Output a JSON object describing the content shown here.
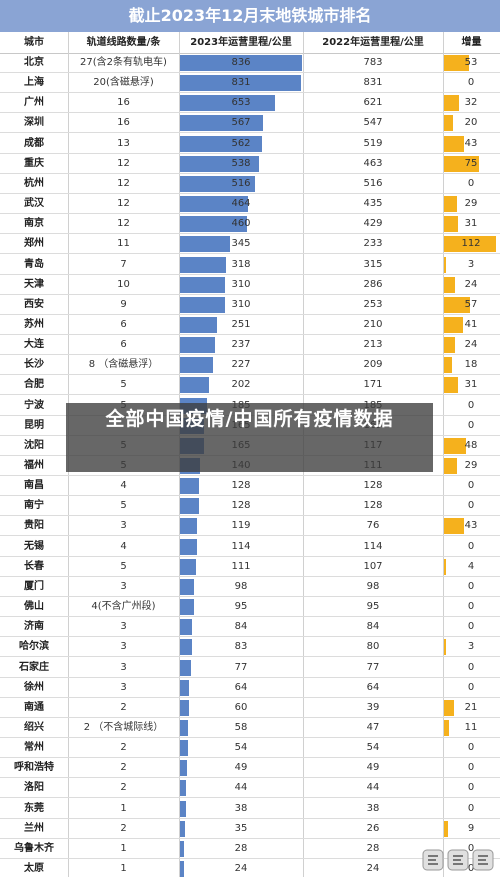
{
  "chart_data": {
    "type": "table",
    "title": "截止2023年12月末地铁城市排名",
    "columns": [
      "城市",
      "轨道线路数量/条",
      "2023年运营里程/公里",
      "2022年运营里程/公里",
      "增量"
    ],
    "rows": [
      {
        "city": "北京",
        "lines": "27(含2条有轨电车)",
        "km2023": 836,
        "km2022": 783,
        "increase": 53
      },
      {
        "city": "上海",
        "lines": "20(含磁悬浮)",
        "km2023": 831,
        "km2022": 831,
        "increase": 0
      },
      {
        "city": "广州",
        "lines": "16",
        "km2023": 653,
        "km2022": 621,
        "increase": 32
      },
      {
        "city": "深圳",
        "lines": "16",
        "km2023": 567,
        "km2022": 547,
        "increase": 20
      },
      {
        "city": "成都",
        "lines": "13",
        "km2023": 562,
        "km2022": 519,
        "increase": 43
      },
      {
        "city": "重庆",
        "lines": "12",
        "km2023": 538,
        "km2022": 463,
        "increase": 75
      },
      {
        "city": "杭州",
        "lines": "12",
        "km2023": 516,
        "km2022": 516,
        "increase": 0
      },
      {
        "city": "武汉",
        "lines": "12",
        "km2023": 464,
        "km2022": 435,
        "increase": 29
      },
      {
        "city": "南京",
        "lines": "12",
        "km2023": 460,
        "km2022": 429,
        "increase": 31
      },
      {
        "city": "郑州",
        "lines": "11",
        "km2023": 345,
        "km2022": 233,
        "increase": 112
      },
      {
        "city": "青岛",
        "lines": "7",
        "km2023": 318,
        "km2022": 315,
        "increase": 3
      },
      {
        "city": "天津",
        "lines": "10",
        "km2023": 310,
        "km2022": 286,
        "increase": 24
      },
      {
        "city": "西安",
        "lines": "9",
        "km2023": 310,
        "km2022": 253,
        "increase": 57
      },
      {
        "city": "苏州",
        "lines": "6",
        "km2023": 251,
        "km2022": 210,
        "increase": 41
      },
      {
        "city": "大连",
        "lines": "6",
        "km2023": 237,
        "km2022": 213,
        "increase": 24
      },
      {
        "city": "长沙",
        "lines": "8 （含磁悬浮）",
        "km2023": 227,
        "km2022": 209,
        "increase": 18
      },
      {
        "city": "合肥",
        "lines": "5",
        "km2023": 202,
        "km2022": 171,
        "increase": 31
      },
      {
        "city": "宁波",
        "lines": "5",
        "km2023": 185,
        "km2022": 185,
        "increase": 0
      },
      {
        "city": "昆明",
        "lines": "",
        "km2023": 165,
        "km2022": 165,
        "increase": 0
      },
      {
        "city": "沈阳",
        "lines": "5",
        "km2023": 165,
        "km2022": 117,
        "increase": 48
      },
      {
        "city": "福州",
        "lines": "5",
        "km2023": 140,
        "km2022": 111,
        "increase": 29
      },
      {
        "city": "南昌",
        "lines": "4",
        "km2023": 128,
        "km2022": 128,
        "increase": 0
      },
      {
        "city": "南宁",
        "lines": "5",
        "km2023": 128,
        "km2022": 128,
        "increase": 0
      },
      {
        "city": "贵阳",
        "lines": "3",
        "km2023": 119,
        "km2022": 76,
        "increase": 43
      },
      {
        "city": "无锡",
        "lines": "4",
        "km2023": 114,
        "km2022": 114,
        "increase": 0
      },
      {
        "city": "长春",
        "lines": "5",
        "km2023": 111,
        "km2022": 107,
        "increase": 4
      },
      {
        "city": "厦门",
        "lines": "3",
        "km2023": 98,
        "km2022": 98,
        "increase": 0
      },
      {
        "city": "佛山",
        "lines": "4(不含广州段)",
        "km2023": 95,
        "km2022": 95,
        "increase": 0
      },
      {
        "city": "济南",
        "lines": "3",
        "km2023": 84,
        "km2022": 84,
        "increase": 0
      },
      {
        "city": "哈尔滨",
        "lines": "3",
        "km2023": 83,
        "km2022": 80,
        "increase": 3
      },
      {
        "city": "石家庄",
        "lines": "3",
        "km2023": 77,
        "km2022": 77,
        "increase": 0
      },
      {
        "city": "徐州",
        "lines": "3",
        "km2023": 64,
        "km2022": 64,
        "increase": 0
      },
      {
        "city": "南通",
        "lines": "2",
        "km2023": 60,
        "km2022": 39,
        "increase": 21
      },
      {
        "city": "绍兴",
        "lines": "2 （不含城际线）",
        "km2023": 58,
        "km2022": 47,
        "increase": 11
      },
      {
        "city": "常州",
        "lines": "2",
        "km2023": 54,
        "km2022": 54,
        "increase": 0
      },
      {
        "city": "呼和浩特",
        "lines": "2",
        "km2023": 49,
        "km2022": 49,
        "increase": 0
      },
      {
        "city": "洛阳",
        "lines": "2",
        "km2023": 44,
        "km2022": 44,
        "increase": 0
      },
      {
        "city": "东莞",
        "lines": "1",
        "km2023": 38,
        "km2022": 38,
        "increase": 0
      },
      {
        "city": "兰州",
        "lines": "2",
        "km2023": 35,
        "km2022": 26,
        "increase": 9
      },
      {
        "city": "乌鲁木齐",
        "lines": "1",
        "km2023": 28,
        "km2022": 28,
        "increase": 0
      },
      {
        "city": "太原",
        "lines": "1",
        "km2023": 24,
        "km2022": 24,
        "increase": 0
      }
    ],
    "bar_scale_2023": [
      0,
      836
    ],
    "bar_scale_increase": [
      0,
      112
    ]
  },
  "overlay": {
    "text": "全部中国疫情/中国所有疫情数据"
  },
  "colors": {
    "title_bg": "#8aa4d4",
    "bar_2023": "#5b84c6",
    "bar_increase": "#f5b11d"
  },
  "icons": {
    "watermark": "watermark-logo"
  }
}
